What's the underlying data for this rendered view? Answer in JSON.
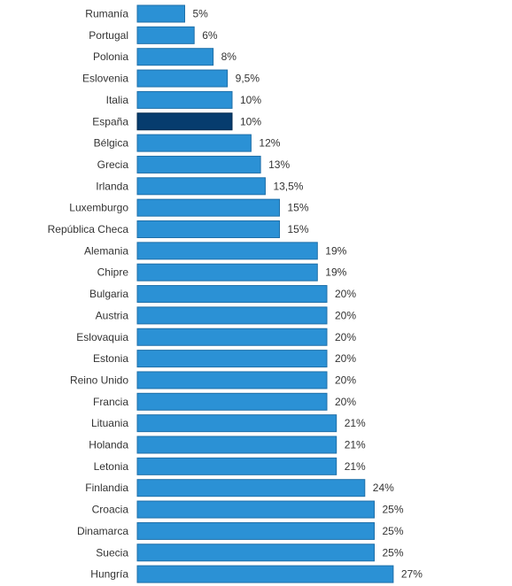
{
  "chart_data": {
    "type": "bar",
    "orientation": "horizontal",
    "title": "",
    "xlabel": "",
    "ylabel": "",
    "xlim": [
      0,
      27
    ],
    "grid": false,
    "legend": "none",
    "categories": [
      "Rumanía",
      "Portugal",
      "Polonia",
      "Eslovenia",
      "Italia",
      "España",
      "Bélgica",
      "Grecia",
      "Irlanda",
      "Luxemburgo",
      "República Checa",
      "Alemania",
      "Chipre",
      "Bulgaria",
      "Austria",
      "Eslovaquia",
      "Estonia",
      "Reino Unido",
      "Francia",
      "Lituania",
      "Holanda",
      "Letonia",
      "Finlandia",
      "Croacia",
      "Dinamarca",
      "Suecia",
      "Hungría"
    ],
    "values": [
      5,
      6,
      8,
      9.5,
      10,
      10,
      12,
      13,
      13.5,
      15,
      15,
      19,
      19,
      20,
      20,
      20,
      20,
      20,
      20,
      21,
      21,
      21,
      24,
      25,
      25,
      25,
      27
    ],
    "data_labels": [
      "5%",
      "6%",
      "8%",
      "9,5%",
      "10%",
      "10%",
      "12%",
      "13%",
      "13,5%",
      "15%",
      "15%",
      "19%",
      "19%",
      "20%",
      "20%",
      "20%",
      "20%",
      "20%",
      "20%",
      "21%",
      "21%",
      "21%",
      "24%",
      "25%",
      "25%",
      "25%",
      "27%"
    ],
    "highlighted_category": "España",
    "colors": {
      "bar": "#2b91d5",
      "highlight": "#063c6e",
      "border": "#1f6fa8",
      "highlight_border": "#042a4e",
      "text": "#333333"
    }
  }
}
